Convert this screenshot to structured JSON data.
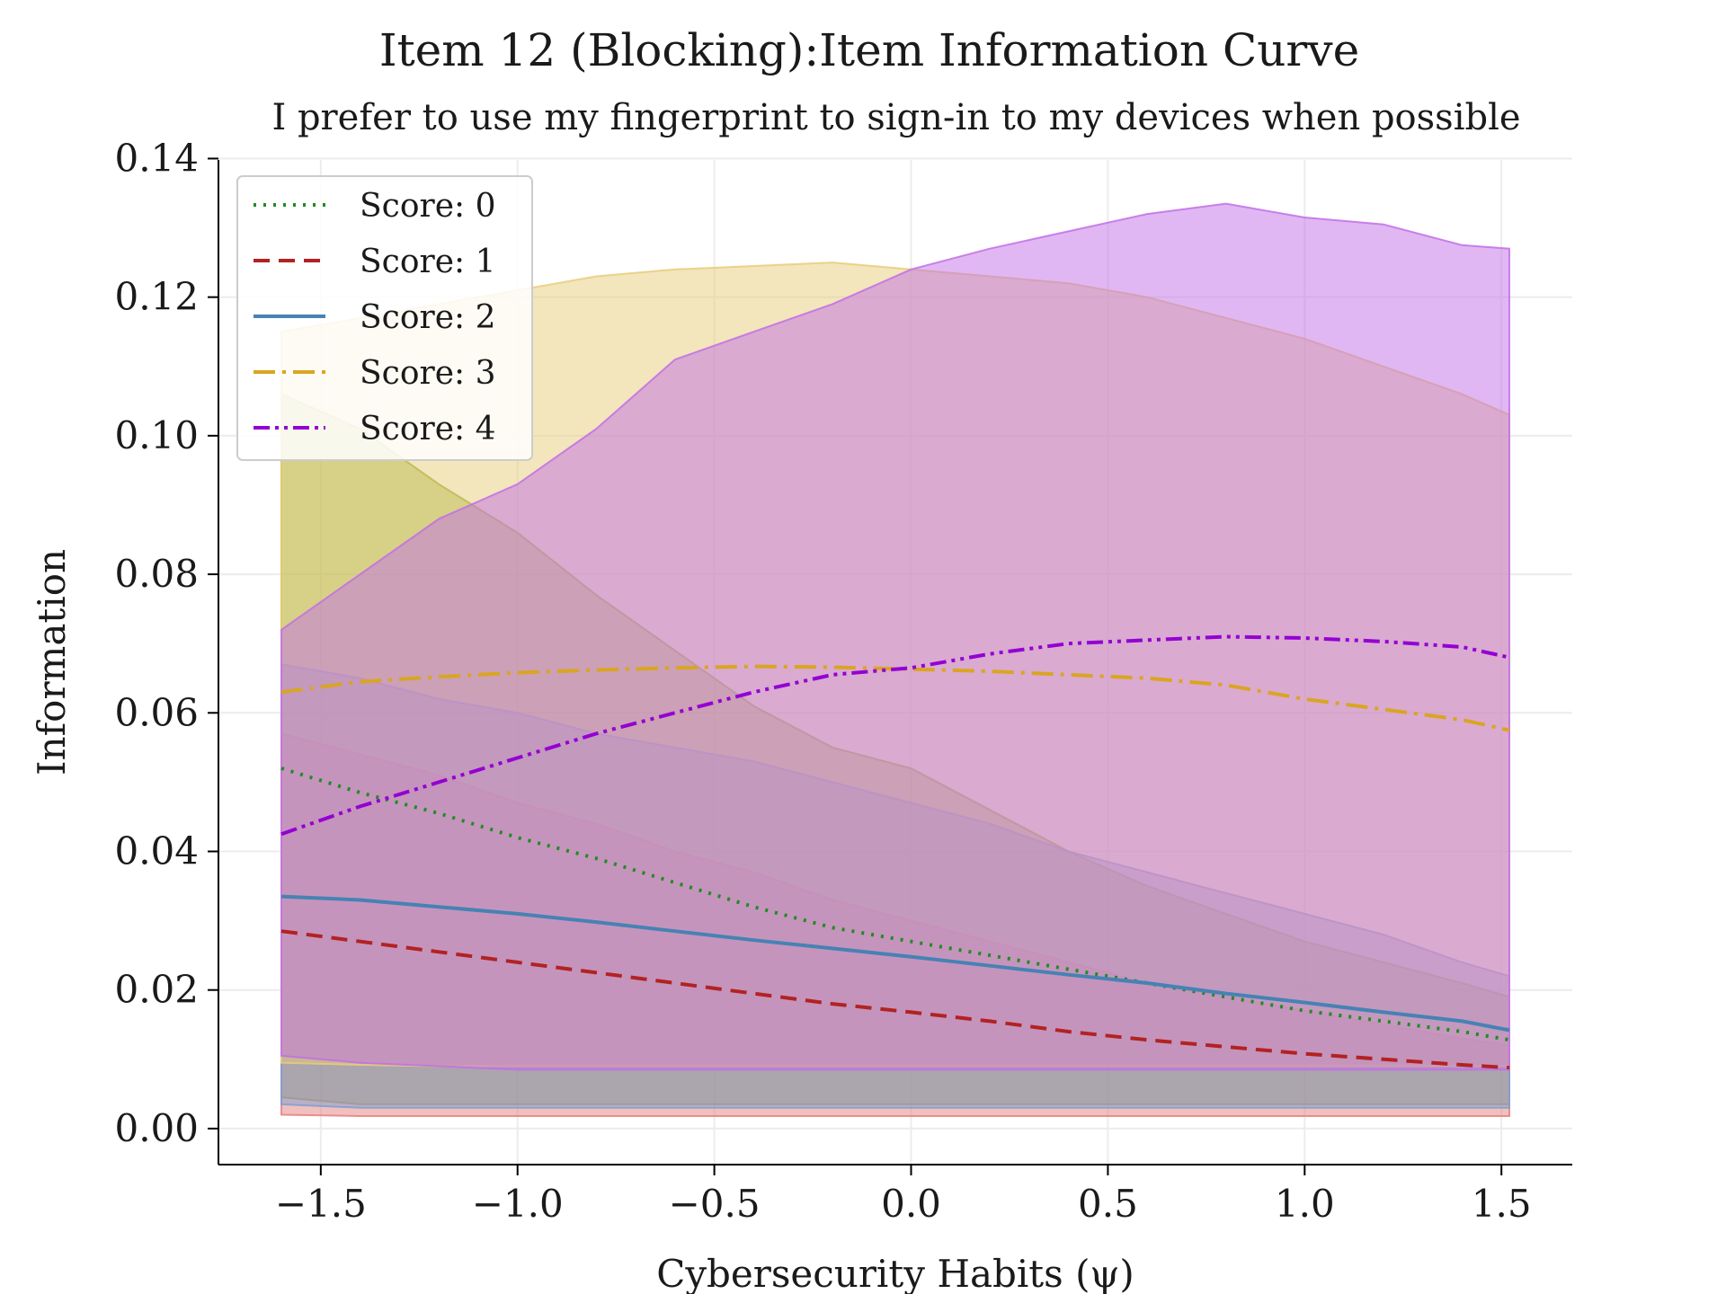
{
  "chart_data": {
    "type": "line",
    "title": "Item 12 (Blocking):Item Information Curve",
    "subtitle": "I prefer to use my fingerprint to sign-in to my devices when possible",
    "xlabel": "Cybersecurity Habits (ψ)",
    "ylabel": "Information",
    "xlim": [
      -1.76,
      1.68
    ],
    "ylim": [
      -0.0052,
      0.1398
    ],
    "xticks": [
      -1.5,
      -1.0,
      -0.5,
      0.0,
      0.5,
      1.0,
      1.5
    ],
    "xtick_labels": [
      "−1.5",
      "−1.0",
      "−0.5",
      "0.0",
      "0.5",
      "1.0",
      "1.5"
    ],
    "yticks": [
      0.0,
      0.02,
      0.04,
      0.06,
      0.08,
      0.1,
      0.12,
      0.14
    ],
    "ytick_labels": [
      "0.00",
      "0.02",
      "0.04",
      "0.06",
      "0.08",
      "0.10",
      "0.12",
      "0.14"
    ],
    "grid": true,
    "legend_position": "top-left",
    "x": [
      -1.6,
      -1.4,
      -1.2,
      -1.0,
      -0.8,
      -0.6,
      -0.4,
      -0.2,
      0.0,
      0.2,
      0.4,
      0.6,
      0.8,
      1.0,
      1.2,
      1.4,
      1.52
    ],
    "series": [
      {
        "name": "Score: 0",
        "color": "#228b22",
        "dash": "dotted",
        "values": [
          0.052,
          0.0485,
          0.0455,
          0.042,
          0.039,
          0.0355,
          0.032,
          0.029,
          0.027,
          0.025,
          0.023,
          0.021,
          0.019,
          0.017,
          0.0155,
          0.014,
          0.0128
        ],
        "band_lower": [
          0.0045,
          0.0035,
          0.0035,
          0.0035,
          0.0035,
          0.0035,
          0.0035,
          0.0035,
          0.0035,
          0.0035,
          0.0035,
          0.0035,
          0.0035,
          0.0035,
          0.0035,
          0.0035,
          0.0035
        ],
        "band_upper": [
          0.106,
          0.101,
          0.093,
          0.086,
          0.077,
          0.069,
          0.061,
          0.055,
          0.052,
          0.046,
          0.04,
          0.035,
          0.031,
          0.027,
          0.024,
          0.021,
          0.019
        ],
        "fill": "#8faa2a"
      },
      {
        "name": "Score: 1",
        "color": "#b22222",
        "dash": "dashed",
        "values": [
          0.0285,
          0.027,
          0.0255,
          0.024,
          0.0225,
          0.021,
          0.0195,
          0.018,
          0.0168,
          0.0155,
          0.014,
          0.0128,
          0.0118,
          0.0108,
          0.01,
          0.0092,
          0.0088
        ],
        "band_lower": [
          0.002,
          0.0018,
          0.0018,
          0.0018,
          0.0018,
          0.0018,
          0.0018,
          0.0018,
          0.0018,
          0.0018,
          0.0018,
          0.0018,
          0.0018,
          0.0018,
          0.0018,
          0.0018,
          0.0018
        ],
        "band_upper": [
          0.057,
          0.054,
          0.051,
          0.047,
          0.044,
          0.04,
          0.037,
          0.033,
          0.03,
          0.027,
          0.024,
          0.021,
          0.019,
          0.017,
          0.015,
          0.013,
          0.012
        ],
        "fill": "#e67f7f"
      },
      {
        "name": "Score: 2",
        "color": "#4682b4",
        "dash": "solid",
        "values": [
          0.0335,
          0.033,
          0.032,
          0.031,
          0.0298,
          0.0285,
          0.0272,
          0.026,
          0.0248,
          0.0235,
          0.0222,
          0.021,
          0.0195,
          0.0182,
          0.0168,
          0.0155,
          0.0142
        ],
        "band_lower": [
          0.0035,
          0.003,
          0.003,
          0.003,
          0.003,
          0.003,
          0.003,
          0.003,
          0.003,
          0.003,
          0.003,
          0.003,
          0.003,
          0.003,
          0.003,
          0.003,
          0.003
        ],
        "band_upper": [
          0.067,
          0.065,
          0.062,
          0.06,
          0.057,
          0.055,
          0.053,
          0.05,
          0.047,
          0.044,
          0.04,
          0.037,
          0.034,
          0.031,
          0.028,
          0.024,
          0.022
        ],
        "fill": "#7f9fd0"
      },
      {
        "name": "Score: 3",
        "color": "#daa520",
        "dash": "dashdot",
        "values": [
          0.063,
          0.0645,
          0.0652,
          0.0658,
          0.0662,
          0.0665,
          0.0667,
          0.0666,
          0.0663,
          0.066,
          0.0655,
          0.065,
          0.064,
          0.062,
          0.0605,
          0.059,
          0.0575
        ],
        "band_lower": [
          0.0095,
          0.0092,
          0.009,
          0.009,
          0.009,
          0.009,
          0.009,
          0.009,
          0.009,
          0.009,
          0.009,
          0.009,
          0.009,
          0.009,
          0.009,
          0.009,
          0.009
        ],
        "band_upper": [
          0.115,
          0.117,
          0.119,
          0.121,
          0.123,
          0.124,
          0.1245,
          0.125,
          0.124,
          0.123,
          0.122,
          0.12,
          0.117,
          0.114,
          0.11,
          0.106,
          0.103
        ],
        "fill": "#e8cc7a"
      },
      {
        "name": "Score: 4",
        "color": "#9400d3",
        "dash": "dashdotdot",
        "values": [
          0.0425,
          0.0465,
          0.05,
          0.0535,
          0.057,
          0.06,
          0.063,
          0.0655,
          0.0665,
          0.0685,
          0.07,
          0.0705,
          0.071,
          0.0708,
          0.0703,
          0.0695,
          0.068
        ],
        "band_lower": [
          0.0105,
          0.0095,
          0.009,
          0.0085,
          0.0085,
          0.0085,
          0.0085,
          0.0085,
          0.0085,
          0.0085,
          0.0085,
          0.0085,
          0.0085,
          0.0085,
          0.0085,
          0.0085,
          0.0085
        ],
        "band_upper": [
          0.072,
          0.08,
          0.088,
          0.093,
          0.101,
          0.111,
          0.115,
          0.119,
          0.124,
          0.127,
          0.1295,
          0.132,
          0.1335,
          0.1315,
          0.1305,
          0.1275,
          0.127
        ],
        "fill": "#c26fe6"
      }
    ]
  }
}
